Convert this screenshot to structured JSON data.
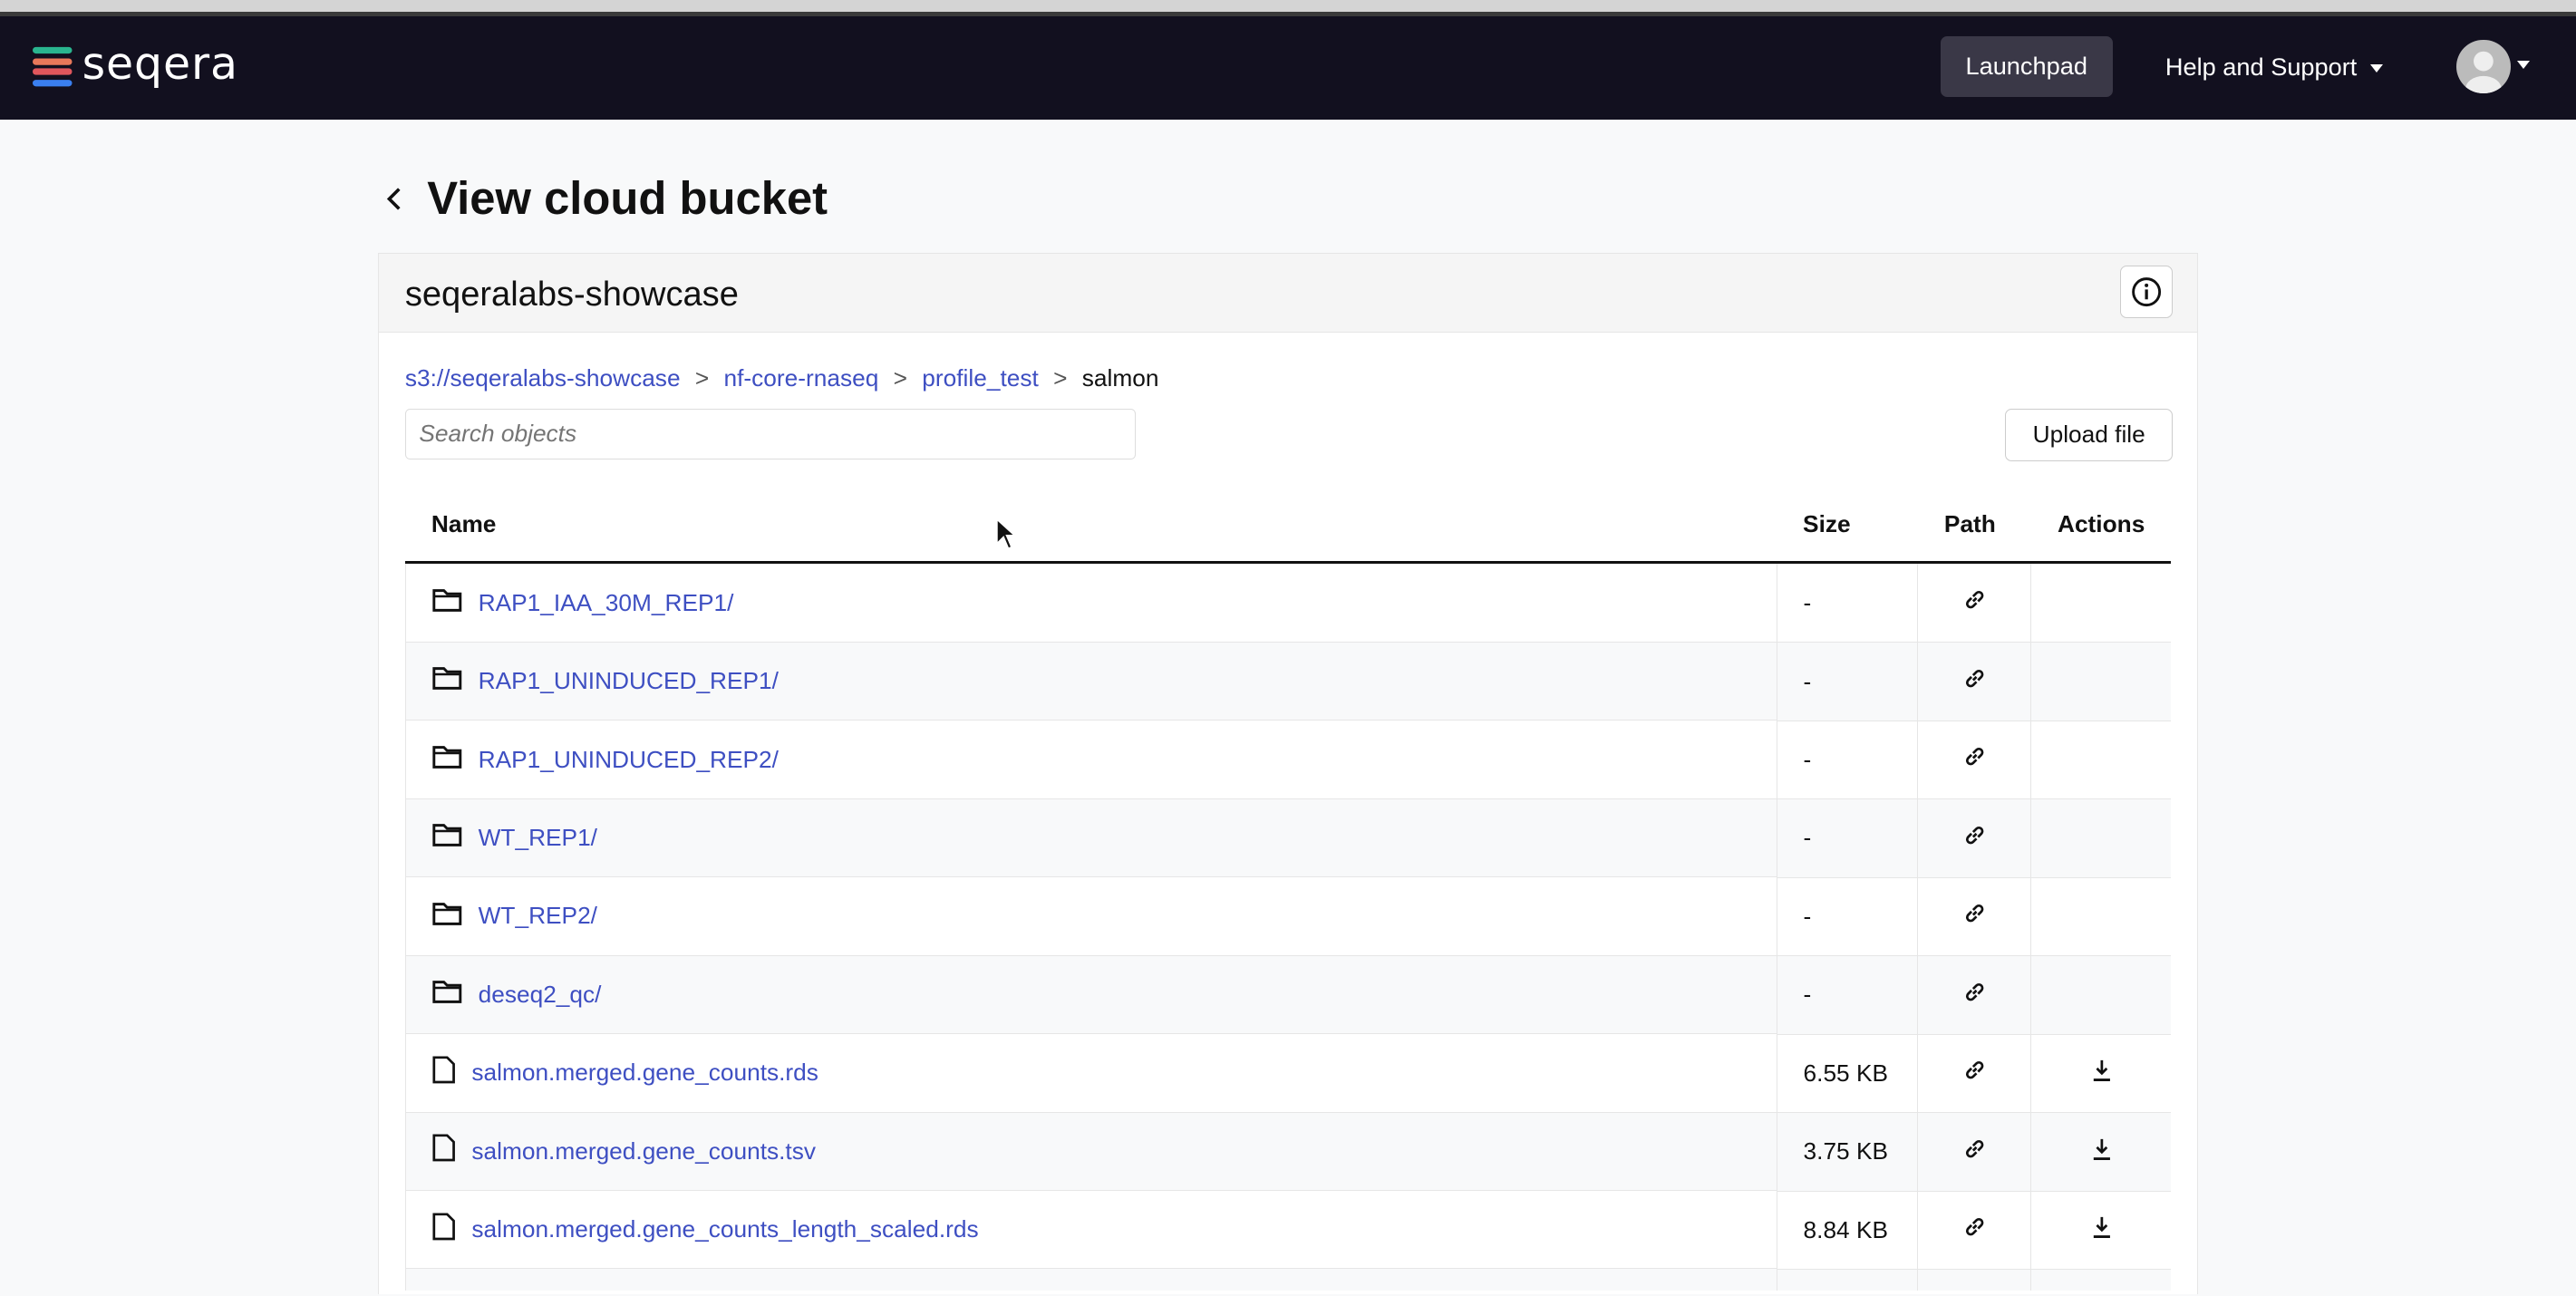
{
  "nav": {
    "brand": "seqera",
    "launchpad": "Launchpad",
    "help": "Help and Support"
  },
  "page": {
    "title": "View cloud bucket"
  },
  "bucket": {
    "name": "seqeralabs-showcase"
  },
  "breadcrumb": [
    {
      "label": "s3://seqeralabs-showcase",
      "link": true
    },
    {
      "label": "nf-core-rnaseq",
      "link": true
    },
    {
      "label": "profile_test",
      "link": true
    },
    {
      "label": "salmon",
      "link": false
    }
  ],
  "breadcrumb_sep": ">",
  "search": {
    "placeholder": "Search objects"
  },
  "upload_label": "Upload file",
  "table": {
    "headers": [
      "Name",
      "Size",
      "Path",
      "Actions"
    ],
    "rows": [
      {
        "type": "folder",
        "name": "RAP1_IAA_30M_REP1/",
        "size": "-"
      },
      {
        "type": "folder",
        "name": "RAP1_UNINDUCED_REP1/",
        "size": "-"
      },
      {
        "type": "folder",
        "name": "RAP1_UNINDUCED_REP2/",
        "size": "-"
      },
      {
        "type": "folder",
        "name": "WT_REP1/",
        "size": "-"
      },
      {
        "type": "folder",
        "name": "WT_REP2/",
        "size": "-"
      },
      {
        "type": "folder",
        "name": "deseq2_qc/",
        "size": "-"
      },
      {
        "type": "file",
        "name": "salmon.merged.gene_counts.rds",
        "size": "6.55 KB"
      },
      {
        "type": "file",
        "name": "salmon.merged.gene_counts.tsv",
        "size": "3.75 KB"
      },
      {
        "type": "file",
        "name": "salmon.merged.gene_counts_length_scaled.rds",
        "size": "8.84 KB"
      },
      {
        "type": "file",
        "name": "",
        "size": ""
      }
    ]
  },
  "colors": {
    "navbar": "#12101f",
    "link": "#3e4fc2"
  }
}
